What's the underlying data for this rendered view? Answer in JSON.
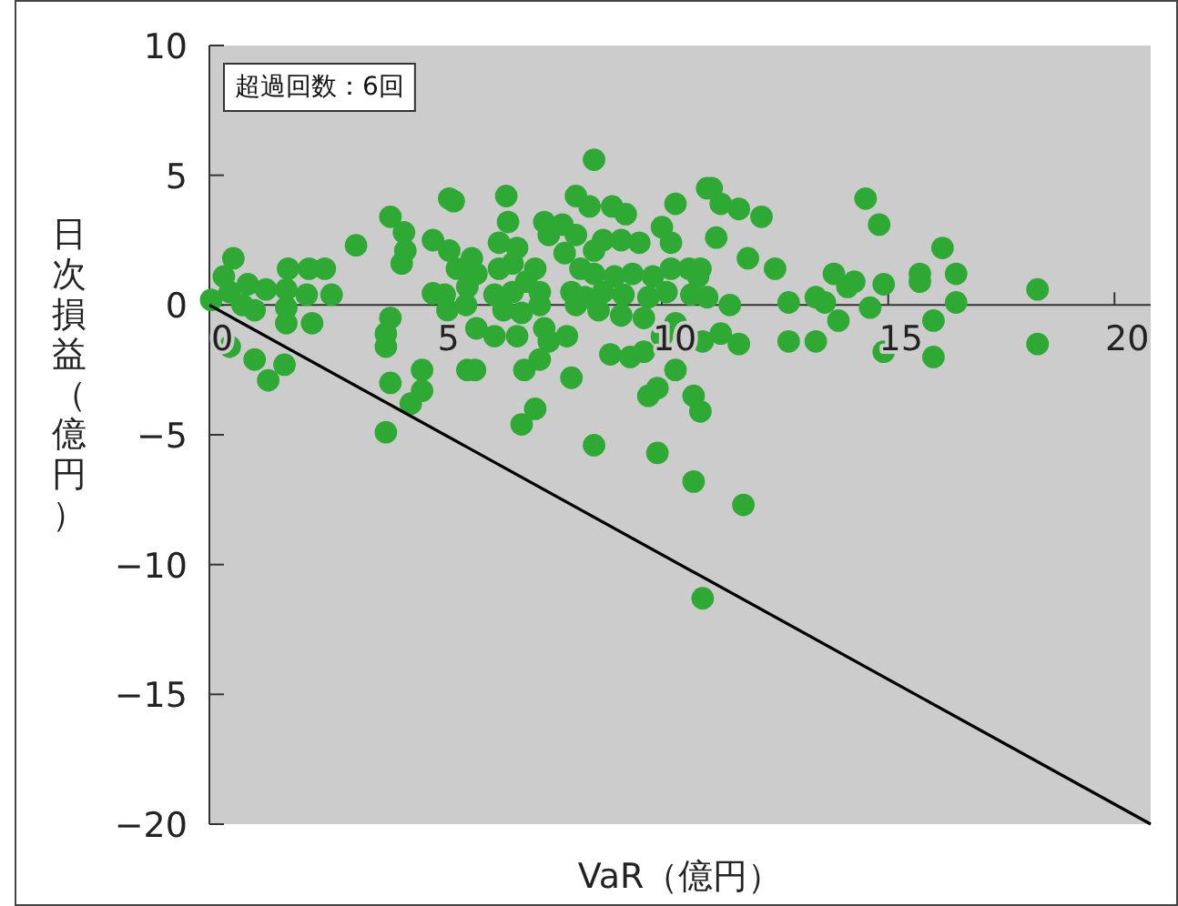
{
  "chart_data": {
    "type": "scatter",
    "xlabel": "VaR（億円）",
    "ylabel": "日次損益（億円）",
    "xlim": [
      0,
      20.8
    ],
    "ylim": [
      -20,
      10
    ],
    "xticks": [
      0,
      5,
      10,
      15,
      20
    ],
    "yticks": [
      {
        "value": -20,
        "label": "−20"
      },
      {
        "value": -15,
        "label": "−15"
      },
      {
        "value": -10,
        "label": "−10"
      },
      {
        "value": -5,
        "label": "−5"
      },
      0,
      5,
      10
    ],
    "grid": false,
    "marker": "circle",
    "annotations": [
      "超過回数：6回"
    ],
    "series": [
      {
        "color": "#2eaa34",
        "x": [
          0.53,
          0.32,
          0.04,
          0.45,
          0.85,
          1.0,
          0.73,
          1.25,
          1.7,
          1.74,
          1.7,
          1.7,
          2.2,
          2.55,
          2.15,
          2.7,
          2.27,
          0.45,
          1.0,
          1.3,
          1.66,
          3.24,
          4.0,
          4.3,
          4.33,
          4.25,
          4.0,
          3.9,
          3.9,
          4.0,
          3.9,
          4.7,
          4.7,
          4.45,
          5.3,
          4.94,
          5.3,
          5.47,
          4.94,
          5.2,
          5.26,
          5.67,
          5.7,
          8.5,
          6.56,
          6.6,
          5.4,
          8.1,
          8.4,
          8.9,
          9.2,
          10.3,
          11.0,
          7.4,
          7.8,
          7.5,
          6.4,
          6.8,
          8.1,
          8.7,
          9.1,
          9.5,
          10.0,
          10.2,
          7.85,
          8.5,
          5.8,
          5.9,
          6.4,
          6.7,
          7.2,
          7.0,
          8.2,
          8.5,
          8.95,
          9.35,
          9.8,
          10.2,
          10.6,
          10.8,
          5.7,
          6.3,
          6.7,
          7.3,
          8.0,
          8.3,
          8.7,
          9.15,
          9.7,
          10.1,
          10.65,
          6.5,
          6.9,
          7.3,
          8.1,
          8.6,
          9.1,
          9.6,
          10.3,
          5.9,
          6.3,
          6.8,
          7.4,
          7.5,
          7.9,
          10.0,
          10.9,
          5.87,
          6.96,
          7.3,
          8.0,
          8.86,
          9.3,
          9.6,
          10.3,
          9.7,
          9.9,
          10.7,
          10.85,
          7.2,
          6.9,
          8.5,
          9.9,
          10.7,
          11.8,
          10.9,
          11.1,
          11.3,
          11.7,
          12.2,
          14.5,
          14.8,
          11.2,
          11.9,
          12.5,
          16.2,
          13.8,
          14.25,
          14.1,
          14.9,
          15.7,
          15.7,
          16.5,
          18.3,
          10.85,
          11.0,
          11.5,
          12.8,
          13.4,
          13.6,
          14.6,
          13.9,
          16.5,
          16.0,
          11.3,
          11.7,
          12.8,
          13.4,
          14.9,
          16.0,
          18.3
        ],
        "values": [
          1.8,
          1.1,
          0.2,
          0.5,
          0.8,
          -0.2,
          0,
          0.6,
          0.6,
          1.4,
          -0.1,
          -0.7,
          1.4,
          1.4,
          0.4,
          0.4,
          -0.7,
          -1.6,
          -2.1,
          -2.9,
          -2.3,
          2.3,
          3.4,
          2.8,
          2.1,
          1.6,
          -0.5,
          -1.1,
          -1.6,
          -3.0,
          -4.9,
          -2.5,
          -3.3,
          -3.8,
          4.1,
          2.5,
          2.1,
          1.4,
          0.45,
          0.4,
          -0.2,
          0,
          -2.5,
          5.6,
          4.2,
          3.2,
          4.0,
          4.2,
          3.8,
          3.8,
          3.5,
          3.9,
          4.5,
          3.2,
          3.1,
          2.7,
          2.4,
          2.2,
          2.7,
          2.5,
          2.5,
          2.4,
          3.0,
          2.4,
          2.0,
          2.1,
          1.8,
          1.2,
          1.4,
          1.6,
          1.4,
          0.9,
          1.4,
          1.2,
          1.1,
          1.2,
          1.1,
          1.4,
          1.4,
          1.1,
          0.7,
          0.4,
          0.5,
          0.5,
          0.5,
          0.3,
          0.5,
          0.4,
          0.3,
          0.5,
          0.4,
          -0.2,
          -0.3,
          0,
          0,
          -0.2,
          -0.4,
          -0.5,
          -0.7,
          -0.9,
          -1.2,
          -1.2,
          -0.9,
          -1.4,
          -1.2,
          -1.2,
          -1.4,
          -2.5,
          -2.5,
          -2.1,
          -2.8,
          -1.9,
          -2.0,
          -1.8,
          -2.5,
          -3.5,
          -3.2,
          -3.5,
          -4.1,
          -4.0,
          -4.6,
          -5.4,
          -5.7,
          -6.8,
          -7.7,
          -11.3,
          4.5,
          3.9,
          3.7,
          3.4,
          4.1,
          3.1,
          2.6,
          1.8,
          1.4,
          2.2,
          1.2,
          0.9,
          0.7,
          0.8,
          1.2,
          0.9,
          1.2,
          0.6,
          1.4,
          0.3,
          0.0,
          0.1,
          0.3,
          0.1,
          -0.1,
          -0.6,
          0.1,
          -0.6,
          -1.1,
          -1.5,
          -1.4,
          -1.4,
          -1.8,
          -2.0,
          -1.5
        ]
      },
      {
        "type": "line",
        "color": "#000000",
        "line_style": "solid",
        "marker": "none",
        "x": [
          0,
          20.8
        ],
        "values": [
          0,
          -20
        ]
      }
    ]
  }
}
